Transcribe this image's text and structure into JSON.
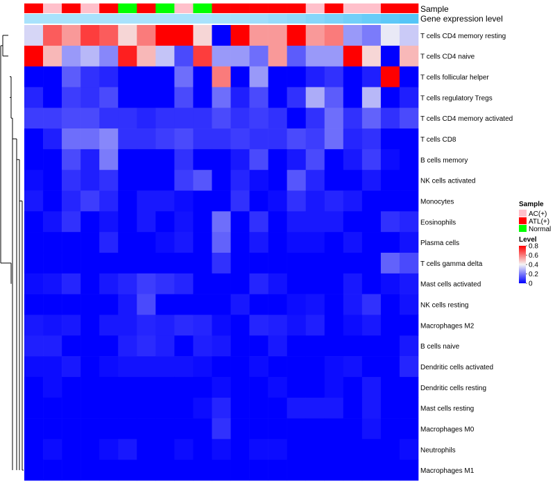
{
  "chart_data": {
    "type": "heatmap",
    "title": "",
    "annotation_labels": {
      "sample": "Sample",
      "gene_expression": "Gene expression level"
    },
    "sample_groups": [
      "ATL(+)",
      "AC(+)",
      "ATL(+)",
      "AC(+)",
      "ATL(+)",
      "Normal",
      "ATL(+)",
      "Normal",
      "AC(+)",
      "Normal",
      "ATL(+)",
      "ATL(+)",
      "ATL(+)",
      "ATL(+)",
      "ATL(+)",
      "AC(+)",
      "ATL(+)",
      "AC(+)",
      "AC(+)",
      "ATL(+)",
      "ATL(+)"
    ],
    "gene_expression_levels": [
      0.1,
      0.1,
      0.1,
      0.1,
      0.1,
      0.1,
      0.1,
      0.1,
      0.1,
      0.1,
      0.12,
      0.15,
      0.2,
      0.28,
      0.35,
      0.45,
      0.55,
      0.65,
      0.75,
      0.85,
      0.95
    ],
    "rows": [
      "T cells CD4 memory resting",
      "T cells CD4 naive",
      "T cells follicular helper",
      "T cells regulatory  Tregs",
      "T cells CD4 memory activated",
      "T cells CD8",
      "B cells memory",
      "NK cells activated",
      "Monocytes",
      "Eosinophils",
      "Plasma cells",
      "T cells gamma delta",
      "Mast cells activated",
      "NK cells resting",
      "Macrophages M2",
      "B cells naive",
      "Dendritic cells activated",
      "Dendritic cells resting",
      "Mast cells resting",
      "Macrophages M0",
      "Neutrophils",
      "Macrophages M1"
    ],
    "values": [
      [
        0.35,
        0.65,
        0.55,
        0.7,
        0.65,
        0.45,
        0.6,
        0.8,
        0.8,
        0.45,
        0.0,
        0.8,
        0.55,
        0.55,
        0.8,
        0.55,
        0.6,
        0.25,
        0.2,
        0.38,
        0.33
      ],
      [
        0.8,
        0.5,
        0.25,
        0.3,
        0.22,
        0.75,
        0.5,
        0.32,
        0.12,
        0.7,
        0.25,
        0.25,
        0.18,
        0.55,
        0.15,
        0.25,
        0.25,
        0.8,
        0.45,
        0.0,
        0.5
      ],
      [
        0.0,
        0.0,
        0.15,
        0.08,
        0.06,
        0.0,
        0.0,
        0.0,
        0.18,
        0.0,
        0.6,
        0.0,
        0.25,
        0.0,
        0.0,
        0.05,
        0.08,
        0.0,
        0.05,
        0.8,
        0.0
      ],
      [
        0.06,
        0.0,
        0.1,
        0.08,
        0.12,
        0.0,
        0.0,
        0.0,
        0.12,
        0.0,
        0.18,
        0.05,
        0.12,
        0.0,
        0.08,
        0.28,
        0.15,
        0.0,
        0.3,
        0.0,
        0.05
      ],
      [
        0.1,
        0.1,
        0.12,
        0.12,
        0.08,
        0.08,
        0.06,
        0.08,
        0.08,
        0.08,
        0.12,
        0.08,
        0.1,
        0.08,
        0.0,
        0.08,
        0.18,
        0.08,
        0.16,
        0.08,
        0.12
      ],
      [
        0.0,
        0.05,
        0.18,
        0.18,
        0.22,
        0.08,
        0.08,
        0.1,
        0.12,
        0.08,
        0.08,
        0.1,
        0.08,
        0.08,
        0.12,
        0.1,
        0.18,
        0.06,
        0.08,
        0.0,
        0.0
      ],
      [
        0.0,
        0.0,
        0.12,
        0.05,
        0.2,
        0.0,
        0.0,
        0.0,
        0.08,
        0.0,
        0.0,
        0.04,
        0.12,
        0.0,
        0.04,
        0.12,
        0.0,
        0.04,
        0.1,
        0.02,
        0.0
      ],
      [
        0.02,
        0.0,
        0.08,
        0.05,
        0.08,
        0.0,
        0.0,
        0.0,
        0.1,
        0.14,
        0.0,
        0.06,
        0.02,
        0.0,
        0.14,
        0.06,
        0.0,
        0.0,
        0.04,
        0.0,
        0.0
      ],
      [
        0.04,
        0.0,
        0.06,
        0.1,
        0.06,
        0.0,
        0.04,
        0.04,
        0.02,
        0.0,
        0.0,
        0.08,
        0.0,
        0.02,
        0.08,
        0.04,
        0.06,
        0.04,
        0.0,
        0.0,
        0.0
      ],
      [
        0.0,
        0.03,
        0.08,
        0.0,
        0.03,
        0.0,
        0.04,
        0.0,
        0.03,
        0.0,
        0.18,
        0.0,
        0.08,
        0.0,
        0.04,
        0.04,
        0.04,
        0.0,
        0.0,
        0.08,
        0.06
      ],
      [
        0.0,
        0.0,
        0.0,
        0.0,
        0.06,
        0.0,
        0.0,
        0.02,
        0.04,
        0.0,
        0.16,
        0.0,
        0.04,
        0.0,
        0.02,
        0.02,
        0.0,
        0.03,
        0.0,
        0.0,
        0.03
      ],
      [
        0.0,
        0.0,
        0.0,
        0.0,
        0.0,
        0.0,
        0.0,
        0.0,
        0.0,
        0.0,
        0.08,
        0.0,
        0.0,
        0.0,
        0.0,
        0.0,
        0.0,
        0.0,
        0.0,
        0.16,
        0.12
      ],
      [
        0.02,
        0.03,
        0.06,
        0.0,
        0.04,
        0.06,
        0.1,
        0.08,
        0.06,
        0.0,
        0.0,
        0.0,
        0.06,
        0.03,
        0.0,
        0.0,
        0.0,
        0.04,
        0.0,
        0.02,
        0.04
      ],
      [
        0.0,
        0.0,
        0.0,
        0.0,
        0.0,
        0.04,
        0.12,
        0.0,
        0.0,
        0.0,
        0.0,
        0.04,
        0.0,
        0.0,
        0.02,
        0.03,
        0.0,
        0.04,
        0.08,
        0.0,
        0.03
      ],
      [
        0.04,
        0.03,
        0.04,
        0.0,
        0.04,
        0.04,
        0.06,
        0.05,
        0.07,
        0.06,
        0.02,
        0.0,
        0.06,
        0.05,
        0.03,
        0.05,
        0.0,
        0.02,
        0.04,
        0.0,
        0.0
      ],
      [
        0.05,
        0.05,
        0.0,
        0.0,
        0.0,
        0.05,
        0.07,
        0.05,
        0.0,
        0.05,
        0.04,
        0.0,
        0.0,
        0.04,
        0.0,
        0.0,
        0.0,
        0.0,
        0.0,
        0.0,
        0.04
      ],
      [
        0.02,
        0.02,
        0.04,
        0.0,
        0.02,
        0.03,
        0.03,
        0.03,
        0.03,
        0.02,
        0.0,
        0.0,
        0.02,
        0.0,
        0.0,
        0.0,
        0.02,
        0.03,
        0.0,
        0.0,
        0.06
      ],
      [
        0.0,
        0.02,
        0.0,
        0.0,
        0.0,
        0.0,
        0.0,
        0.0,
        0.0,
        0.0,
        0.02,
        0.0,
        0.0,
        0.02,
        0.0,
        0.0,
        0.02,
        0.0,
        0.04,
        0.0,
        0.0
      ],
      [
        0.0,
        0.0,
        0.0,
        0.0,
        0.0,
        0.0,
        0.0,
        0.0,
        0.0,
        0.02,
        0.06,
        0.0,
        0.0,
        0.0,
        0.04,
        0.04,
        0.04,
        0.0,
        0.04,
        0.0,
        0.0
      ],
      [
        0.0,
        0.0,
        0.0,
        0.0,
        0.0,
        0.0,
        0.0,
        0.0,
        0.0,
        0.0,
        0.08,
        0.0,
        0.0,
        0.0,
        0.0,
        0.0,
        0.0,
        0.0,
        0.03,
        0.0,
        0.0
      ],
      [
        0.0,
        0.02,
        0.0,
        0.0,
        0.02,
        0.04,
        0.0,
        0.0,
        0.02,
        0.0,
        0.02,
        0.0,
        0.02,
        0.02,
        0.0,
        0.0,
        0.0,
        0.0,
        0.0,
        0.0,
        0.02
      ],
      [
        0.0,
        0.0,
        0.0,
        0.0,
        0.0,
        0.0,
        0.0,
        0.0,
        0.0,
        0.0,
        0.0,
        0.0,
        0.0,
        0.0,
        0.0,
        0.0,
        0.0,
        0.0,
        0.0,
        0.0,
        0.0
      ]
    ],
    "legend": {
      "sample_title": "Sample",
      "sample_items": [
        {
          "label": "AC(+)",
          "color": "#FFC0CB"
        },
        {
          "label": "ATL(+)",
          "color": "#FF0000"
        },
        {
          "label": "Normal",
          "color": "#00FF00"
        }
      ],
      "level_title": "Level",
      "level_ticks": [
        "0.8",
        "0.6",
        "0.4",
        "0.2",
        "0"
      ],
      "level_range": [
        0,
        0.8
      ]
    },
    "colors": {
      "low": "#0000FF",
      "mid": "#F5F5F5",
      "high": "#FF0000",
      "gene_low": "#B3E5FC",
      "gene_high": "#4FC3F7"
    }
  }
}
